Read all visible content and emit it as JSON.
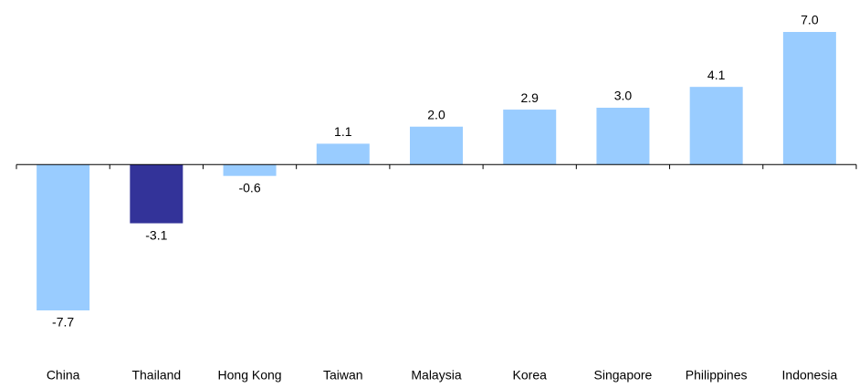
{
  "chart_data": {
    "type": "bar",
    "categories": [
      "China",
      "Thailand",
      "Hong Kong",
      "Taiwan",
      "Malaysia",
      "Korea",
      "Singapore",
      "Philippines",
      "Indonesia"
    ],
    "values": [
      -7.7,
      -3.1,
      -0.6,
      1.1,
      2.0,
      2.9,
      3.0,
      4.1,
      7.0
    ],
    "value_labels": [
      "-7.7",
      "-3.1",
      "-0.6",
      "1.1",
      "2.0",
      "2.9",
      "3.0",
      "4.1",
      "7.0"
    ],
    "colors": [
      "#99ccff",
      "#333399",
      "#99ccff",
      "#99ccff",
      "#99ccff",
      "#99ccff",
      "#99ccff",
      "#99ccff",
      "#99ccff"
    ]
  }
}
